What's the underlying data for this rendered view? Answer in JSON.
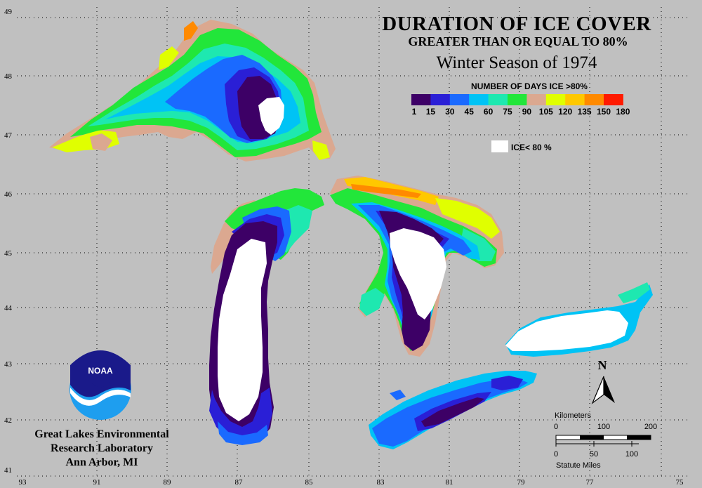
{
  "title": "DURATION OF ICE COVER",
  "subtitle": "GREATER THAN OR EQUAL TO 80%",
  "season": "Winter Season of 1974",
  "legend": {
    "title": "NUMBER OF DAYS ICE >80%",
    "classes": [
      {
        "label": "1",
        "color": "#3d0066"
      },
      {
        "label": "15",
        "color": "#2a1fd6"
      },
      {
        "label": "30",
        "color": "#1a6aff"
      },
      {
        "label": "45",
        "color": "#00c3f5"
      },
      {
        "label": "60",
        "color": "#1ee8b0"
      },
      {
        "label": "75",
        "color": "#22e63a"
      },
      {
        "label": "90",
        "color": "#dba890"
      },
      {
        "label": "105",
        "color": "#e0ff00"
      },
      {
        "label": "120",
        "color": "#ffc800"
      },
      {
        "label": "135",
        "color": "#ff8a00"
      },
      {
        "label": "150",
        "color": "#ff1a00"
      },
      {
        "label": "180",
        "color": "#ff1aa8"
      }
    ],
    "no_ice_label": "ICE< 80 %",
    "no_ice_color": "#ffffff"
  },
  "lat_ticks": [
    "49",
    "48",
    "47",
    "46",
    "45",
    "44",
    "43",
    "42",
    "41"
  ],
  "lon_ticks": [
    "93",
    "91",
    "89",
    "87",
    "85",
    "83",
    "81",
    "79",
    "77",
    "75"
  ],
  "north_label": "N",
  "scale": {
    "km_label": "Kilometers",
    "km_ticks": [
      "0",
      "100",
      "200"
    ],
    "mi_ticks": [
      "0",
      "50",
      "100"
    ],
    "mi_label": "Statute Miles"
  },
  "logo_text": "NOAA",
  "org": {
    "line1": "Great Lakes Environmental",
    "line2": "Research Laboratory",
    "line3": "Ann Arbor, MI"
  }
}
